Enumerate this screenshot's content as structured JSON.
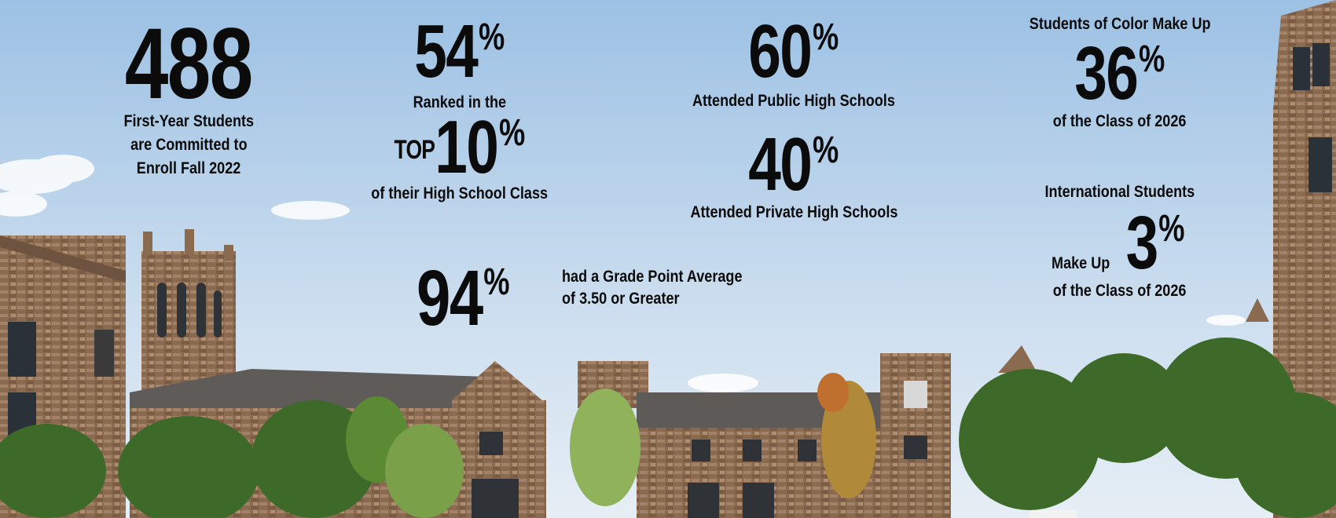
{
  "stats": {
    "first_year": {
      "number": "488",
      "caption_lines": [
        "First-Year Students",
        "are Committed to",
        "Enroll Fall 2022"
      ]
    },
    "top_ranked": {
      "number": "54",
      "pct": "%",
      "caption_top": "Ranked in the",
      "top_word": "TOP",
      "top_number": "10",
      "caption_bottom": "of their High School Class"
    },
    "public_hs": {
      "number": "60",
      "pct": "%",
      "caption": "Attended Public High Schools"
    },
    "private_hs": {
      "number": "40",
      "pct": "%",
      "caption": "Attended Private High Schools"
    },
    "gpa": {
      "number": "94",
      "pct": "%",
      "caption_lines": [
        "had a Grade Point Average",
        "of 3.50 or Greater"
      ]
    },
    "students_of_color": {
      "caption_top": "Students of Color Make Up",
      "number": "36",
      "pct": "%",
      "caption_bottom": "of the Class of 2026"
    },
    "international": {
      "caption_top_lines": [
        "International Students",
        "Make Up"
      ],
      "number": "3",
      "pct": "%",
      "caption_bottom": "of the Class of 2026"
    }
  },
  "colors": {
    "sky_top": "#9ec3e6",
    "sky_bottom": "#e8f0f6",
    "stone": "#8a6a4e",
    "roof": "#5d5a57",
    "foliage": "#3f6b2a",
    "text": "#0b0b0b"
  },
  "icons": [
    "college-buildings-photo",
    "clock-tower",
    "trees"
  ]
}
